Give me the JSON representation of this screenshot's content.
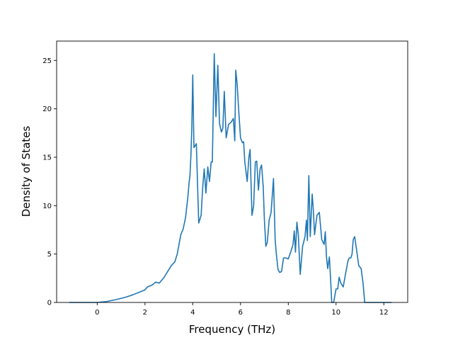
{
  "chart_data": {
    "type": "line",
    "title": "",
    "xlabel": "Frequency (THz)",
    "ylabel": "Density of States",
    "xlim": [
      -1.7,
      13.0
    ],
    "ylim": [
      0,
      27.0
    ],
    "xticks": [
      0,
      2,
      4,
      6,
      8,
      10,
      12
    ],
    "yticks": [
      0,
      5,
      10,
      15,
      20,
      25
    ],
    "xtick_labels": [
      "0",
      "2",
      "4",
      "6",
      "8",
      "10",
      "12"
    ],
    "ytick_labels": [
      "0",
      "5",
      "10",
      "15",
      "20",
      "25"
    ],
    "grid": false,
    "legend": "none",
    "line_color": "#1f77b4",
    "series": [
      {
        "x": [
          -1.15,
          -0.5,
          0.0,
          0.4,
          0.8,
          1.2,
          1.5,
          1.8,
          2.0,
          2.1,
          2.3,
          2.45,
          2.6,
          2.8,
          3.0,
          3.1,
          3.25,
          3.35,
          3.5,
          3.6,
          3.7,
          3.8,
          3.85,
          3.88,
          3.92,
          3.96,
          4.0,
          4.05,
          4.15,
          4.25,
          4.35,
          4.42,
          4.48,
          4.55,
          4.63,
          4.7,
          4.77,
          4.82,
          4.9,
          4.97,
          5.05,
          5.12,
          5.2,
          5.26,
          5.32,
          5.4,
          5.5,
          5.6,
          5.7,
          5.76,
          5.8,
          5.86,
          5.92,
          6.0,
          6.08,
          6.13,
          6.18,
          6.28,
          6.35,
          6.4,
          6.48,
          6.55,
          6.62,
          6.68,
          6.75,
          6.82,
          6.88,
          6.95,
          7.0,
          7.06,
          7.12,
          7.2,
          7.28,
          7.38,
          7.45,
          7.5,
          7.57,
          7.64,
          7.72,
          7.8,
          7.9,
          8.0,
          8.1,
          8.2,
          8.25,
          8.3,
          8.36,
          8.42,
          8.5,
          8.6,
          8.7,
          8.76,
          8.8,
          8.86,
          8.92,
          9.0,
          9.05,
          9.1,
          9.2,
          9.3,
          9.4,
          9.5,
          9.55,
          9.6,
          9.65,
          9.72,
          9.78,
          9.82,
          9.9,
          10.0,
          10.07,
          10.13,
          10.2,
          10.3,
          10.4,
          10.5,
          10.55,
          10.62,
          10.67,
          10.72,
          10.78,
          10.85,
          10.95,
          11.05,
          11.13,
          11.2,
          11.5,
          12.0,
          12.3
        ],
        "y": [
          0.0,
          0.0,
          0.0,
          0.1,
          0.3,
          0.55,
          0.8,
          1.1,
          1.3,
          1.6,
          1.8,
          2.1,
          2.0,
          2.6,
          3.4,
          3.8,
          4.2,
          5.0,
          7.0,
          7.6,
          8.8,
          11.0,
          12.5,
          13.0,
          15.0,
          18.0,
          23.5,
          16.0,
          16.4,
          8.2,
          9.0,
          12.0,
          13.8,
          11.3,
          14.0,
          12.5,
          14.5,
          14.5,
          25.7,
          19.2,
          24.5,
          18.5,
          17.6,
          18.0,
          21.8,
          17.0,
          18.4,
          18.6,
          19.0,
          16.7,
          24.0,
          22.5,
          20.0,
          17.0,
          16.5,
          16.6,
          14.5,
          12.5,
          15.0,
          15.8,
          9.0,
          10.0,
          14.5,
          14.6,
          11.6,
          13.8,
          14.2,
          12.0,
          8.5,
          5.8,
          6.2,
          8.5,
          9.3,
          12.8,
          6.5,
          5.0,
          3.4,
          3.1,
          3.2,
          4.6,
          4.6,
          4.5,
          5.2,
          6.0,
          7.4,
          5.2,
          8.3,
          7.0,
          2.9,
          5.8,
          6.8,
          8.5,
          6.4,
          13.1,
          6.8,
          11.2,
          9.5,
          7.0,
          9.0,
          9.3,
          6.5,
          6.0,
          7.3,
          4.7,
          3.5,
          4.7,
          2.0,
          0.0,
          0.0,
          1.4,
          1.4,
          2.6,
          2.0,
          1.6,
          3.0,
          4.3,
          4.6,
          4.6,
          5.0,
          6.5,
          6.8,
          5.6,
          3.8,
          3.5,
          2.0,
          0.0,
          0.0,
          0.0,
          0.0
        ]
      }
    ]
  }
}
